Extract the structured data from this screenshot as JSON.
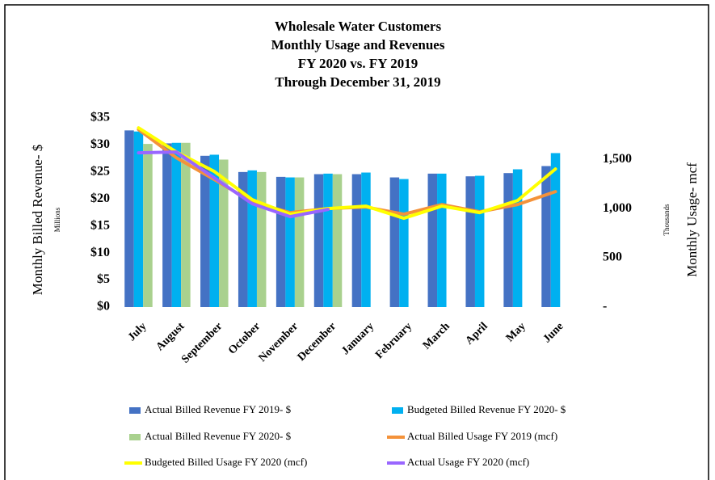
{
  "chart_data": {
    "type": "bar",
    "title": [
      "Wholesale Water Customers",
      "Monthly Usage and Revenues",
      "FY 2020 vs. FY 2019",
      "Through December 31, 2019"
    ],
    "y_label": "Monthly Billed Revenue- $",
    "y_unit": "Millions",
    "y2_label": "Monthly Usage- mcf",
    "y2_unit": "Thousands",
    "categories": [
      "July",
      "August",
      "September",
      "October",
      "November",
      "December",
      "January",
      "February",
      "March",
      "April",
      "May",
      "June"
    ],
    "ylim": [
      0,
      35
    ],
    "yticks": [
      {
        "value": 0,
        "label": "$0"
      },
      {
        "value": 5,
        "label": "$5"
      },
      {
        "value": 10,
        "label": "$10"
      },
      {
        "value": 15,
        "label": "$15"
      },
      {
        "value": 20,
        "label": "$20"
      },
      {
        "value": 25,
        "label": "$25"
      },
      {
        "value": 30,
        "label": "$30"
      },
      {
        "value": 35,
        "label": "$35"
      }
    ],
    "y2lim": [
      0,
      1920
    ],
    "y2ticks": [
      {
        "value": 0,
        "label": "-"
      },
      500,
      {
        "value": 1000,
        "label": "1,000"
      },
      {
        "value": 1500,
        "label": "1,500"
      }
    ],
    "grid": false,
    "legend": "bottom",
    "series": [
      {
        "name": "Actual Billed Revenue FY 2019- $",
        "type": "bar",
        "color": "#4472c4",
        "values": [
          32.7,
          30.3,
          28.0,
          25.0,
          24.1,
          24.6,
          24.6,
          24.0,
          24.7,
          24.2,
          24.8,
          26.1
        ]
      },
      {
        "name": "Budgeted Billed Revenue FY 2020- $",
        "type": "bar",
        "color": "#00b0f0",
        "values": [
          32.5,
          30.4,
          28.2,
          25.3,
          24.0,
          24.7,
          24.9,
          23.7,
          24.7,
          24.3,
          25.5,
          28.5
        ]
      },
      {
        "name": "Actual Billed Revenue FY 2020- $",
        "type": "bar",
        "color": "#a9d18e",
        "values": [
          30.2,
          30.4,
          27.3,
          25.0,
          24.0,
          24.6,
          null,
          null,
          null,
          null,
          null,
          null
        ]
      },
      {
        "name": "Actual Billed Usage FY 2019 (mcf)",
        "type": "line",
        "axis": "y2",
        "color": "#f4923a",
        "values": [
          1803,
          1516,
          1295,
          1066,
          959,
          1000,
          1016,
          943,
          1041,
          967,
          1041,
          1172
        ]
      },
      {
        "name": "Budgeted Billed Usage FY 2020 (mcf)",
        "type": "line",
        "axis": "y2",
        "color": "#ffff00",
        "values": [
          1820,
          1574,
          1377,
          1090,
          943,
          1000,
          1025,
          902,
          1025,
          959,
          1082,
          1402
        ]
      },
      {
        "name": "Actual Usage FY 2020 (mcf)",
        "type": "line",
        "axis": "y2",
        "color": "#9966ff",
        "values": [
          1566,
          1574,
          1311,
          1049,
          918,
          992,
          null,
          null,
          null,
          null,
          null,
          null
        ]
      }
    ]
  }
}
